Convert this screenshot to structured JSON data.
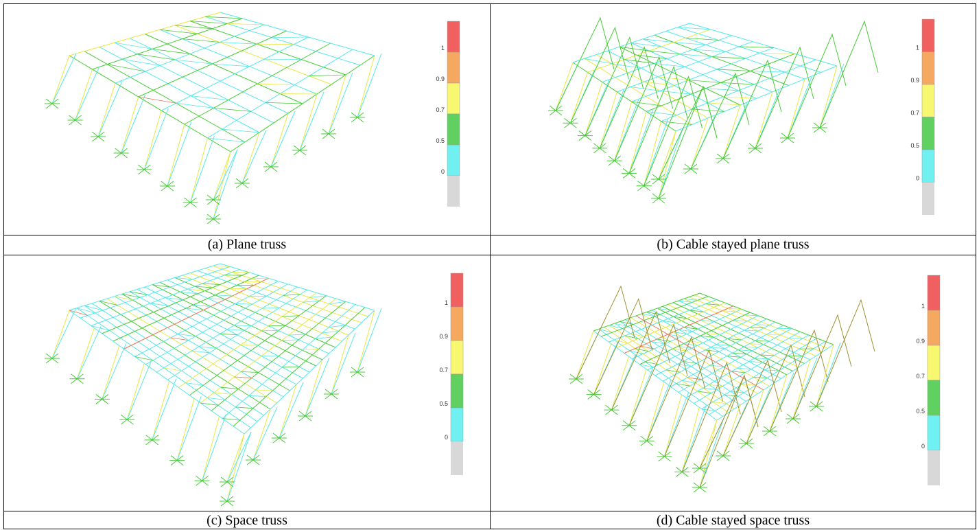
{
  "panels": [
    {
      "caption": "(a) Plane truss",
      "scale_labels": [
        "1",
        "0.9",
        "0.7",
        "0.5",
        "0"
      ]
    },
    {
      "caption": "(b) Cable stayed plane truss",
      "scale_labels": [
        "1",
        "0.9",
        "0.7",
        "0.5",
        "0"
      ]
    },
    {
      "caption": "(c) Space truss",
      "scale_labels": [
        "1",
        "0.9",
        "0.7",
        "0.5",
        "0"
      ]
    },
    {
      "caption": "(d) Cable stayed space truss",
      "scale_labels": [
        "1",
        "0.9",
        "0.7",
        "0.5",
        "0"
      ]
    }
  ]
}
